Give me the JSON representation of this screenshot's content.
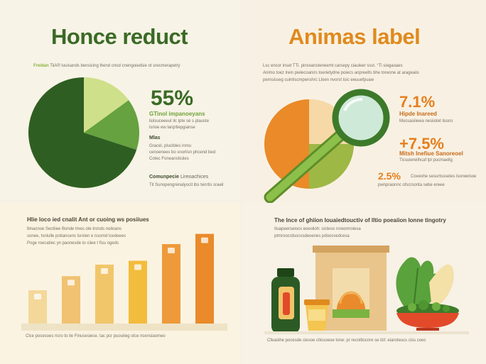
{
  "top_left": {
    "title": "Honce reduct",
    "intro_lead": "Freidan",
    "intro": "TiiA® luuisands bensicing lhend cnod cnengoiedsie ot srecmerapetry",
    "stat_value": "55%",
    "stat_label": "GTinol impanoeyans",
    "stat_line1": "liolsuceeeut ilc lpte sé s plauste",
    "stat_line2": "lsrioe ew larqrtlepgianse",
    "section1_title": "Mlas",
    "section1_line1": "Gracel, plucibles inmu",
    "section1_line2": "cenoenees bo snorlisn phcend bed",
    "section1_line3": "Cotec Foneansticiies",
    "section2_title": "Comunpecie",
    "section2_title_suffix": "Lireoachices",
    "section2_line1": "Tit Sunopengrenalyocit ibs tenrtis sraeil",
    "colors": {
      "title": "#3a6a25",
      "pie_dark": "#2f5e22",
      "pie_mid": "#66a23f",
      "pie_light": "#cfe08a"
    },
    "pie_shares": [
      0.7,
      0.15,
      0.15
    ]
  },
  "top_right": {
    "title": "Animas label",
    "line1": "Lsc encor inset TTi. pinsoansteneemt carsepy ciauleer ssst. °Ti siegaoaes",
    "line2": "Animo toez lrein pielecoanirs toerietydne poiecs anpreelts bhe toreone at arageaiis",
    "line3": "pemsisseg cuintiscmpenshrc Lloen nvorst tsic eeuuefpuaw",
    "stat1_value": "7.1%",
    "stat1_label": "Hipde Inareed",
    "stat1_line": "Mucuasiiewa nesiiotet ilssns",
    "stat2_value": "+7.5%",
    "stat2_label": "Mitsh Inefiue Sanoreoel",
    "stat2_line": "Ticsuiereiihcaf lpl pucmaeilg",
    "stat3_value": "2.5%",
    "stat3_line1": "Coveohe sesurtsssetes lsorwelsoe",
    "stat3_line2": "pwnpraonnc ofscrsonta sebe ereee",
    "icon": "magnifier-icon",
    "colors": {
      "title": "#e08a1e",
      "accent": "#e67e1c",
      "green": "#3c7a2a"
    }
  },
  "bottom_left": {
    "header1": "Hlie loco ied cnalit Ant or cuoing ws posiiues",
    "header2": "lbnacnoe Sectiiee Bonde lmes ote tronds noiloans",
    "header3": "sonee, tsniulle potiancens lsrolen e nsornd lcedeees",
    "header4": "Poge roecatiec yn paonesde to ciiee t fisu ogeds",
    "footer": "Clce pocesoes ricro to ile Finusesiece. tac pcr puouiieg otce ncensiaomeo",
    "bar_values": [
      2.6,
      3.7,
      4.6,
      4.9,
      6.2,
      7.0
    ],
    "icon": "tag-icon",
    "colors": [
      "#f3d89a",
      "#f0c272",
      "#f1c66b",
      "#f2bc3c",
      "#ee9a3a",
      "#ea8a2a"
    ]
  },
  "bottom_right": {
    "header1": "The lnce of ghiion Iouaiedtouctiv of lltio poeaiion lonne tingotry",
    "header2": "Ituapeerseiocs eoeslioh: sicteso rcreomroiesa",
    "header3": "ptmroocrdsocvsdeoenes pdoocvedcesa",
    "footer": "Cfeaoihe pocesde ciesoe ctlosoeoe tone: pr recniltocnre se ilzl: eiaroteucs ciss coec",
    "icons": [
      "bottle-icon",
      "package-icon",
      "jar-icon",
      "lettuce-icon",
      "salad-bowl-icon"
    ],
    "colors": {
      "bottle": "#2c5a24",
      "package": "#e9c58b",
      "bowl": "#e24a2a",
      "leaf": "#5aa23c"
    }
  }
}
